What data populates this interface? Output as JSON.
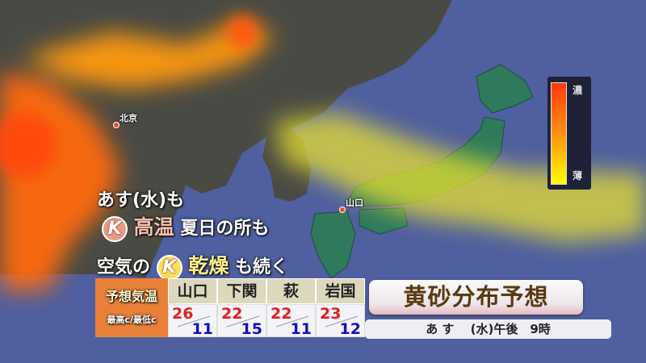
{
  "map": {
    "cities": [
      {
        "name": "北京"
      },
      {
        "name": "山口"
      }
    ],
    "colors": {
      "ocean": "#4f5f9f",
      "land": "#4a4a44",
      "japan": "#2f7a5c",
      "dust_dense": "#ff4a10",
      "dust_thin": "#ffff00"
    }
  },
  "legend": {
    "high_label": "濃",
    "low_label": "薄"
  },
  "headline": {
    "line1": "あす(水)も",
    "line2_badge": "K",
    "line2_keyword": "高温",
    "line2_rest": "夏日の所も",
    "line3_prefix": "空気の",
    "line3_badge": "K",
    "line3_keyword": "乾燥",
    "line3_rest": "も続く"
  },
  "forecast": {
    "title": "予想気温",
    "subtitle": "最高c/最低c",
    "cities": [
      {
        "name": "山口",
        "high": "26",
        "low": "11"
      },
      {
        "name": "下関",
        "high": "22",
        "low": "15"
      },
      {
        "name": "萩",
        "high": "22",
        "low": "11"
      },
      {
        "name": "岩国",
        "high": "23",
        "low": "12"
      }
    ]
  },
  "panel": {
    "title": "黄砂分布予想",
    "time": "あ す　 (水)午後　9時"
  }
}
